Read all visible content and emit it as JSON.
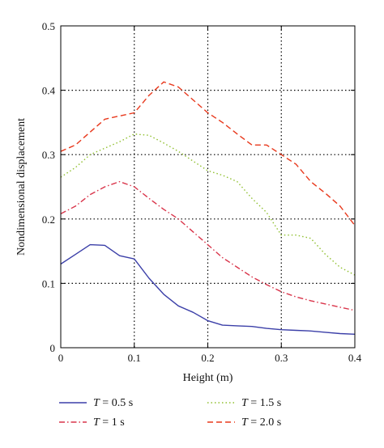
{
  "chart_data": {
    "type": "line",
    "xlabel": "Height (m)",
    "ylabel": "Nondimensional displacement",
    "xlim": [
      0,
      0.4
    ],
    "ylim": [
      0,
      0.5
    ],
    "x_ticks": [
      "0",
      "0.1",
      "0.2",
      "0.3",
      "0.4"
    ],
    "y_ticks": [
      "0",
      "0.1",
      "0.2",
      "0.3",
      "0.4",
      "0.5"
    ],
    "grid": "dotted",
    "legend_placement": "bottom",
    "series": [
      {
        "name": "T = 0.5 s",
        "name_var": "T",
        "name_rest": " = 0.5 s",
        "color": "#3b3fa8",
        "dash": "solid",
        "x": [
          0,
          0.02,
          0.04,
          0.06,
          0.08,
          0.1,
          0.12,
          0.14,
          0.16,
          0.18,
          0.2,
          0.22,
          0.24,
          0.26,
          0.28,
          0.3,
          0.32,
          0.34,
          0.36,
          0.38,
          0.4
        ],
        "y": [
          0.13,
          0.145,
          0.16,
          0.159,
          0.143,
          0.138,
          0.108,
          0.083,
          0.065,
          0.055,
          0.042,
          0.035,
          0.034,
          0.033,
          0.03,
          0.028,
          0.027,
          0.026,
          0.024,
          0.022,
          0.021
        ]
      },
      {
        "name": "T = 1 s",
        "name_var": "T",
        "name_rest": " = 1 s",
        "color": "#d9344a",
        "dash": "dashdot",
        "x": [
          0,
          0.02,
          0.04,
          0.06,
          0.08,
          0.1,
          0.12,
          0.14,
          0.16,
          0.18,
          0.2,
          0.22,
          0.24,
          0.26,
          0.28,
          0.3,
          0.32,
          0.34,
          0.36,
          0.38,
          0.4
        ],
        "y": [
          0.208,
          0.22,
          0.238,
          0.25,
          0.258,
          0.25,
          0.232,
          0.215,
          0.2,
          0.18,
          0.16,
          0.14,
          0.125,
          0.11,
          0.098,
          0.087,
          0.079,
          0.073,
          0.068,
          0.063,
          0.058
        ]
      },
      {
        "name": "T = 1.5 s",
        "name_var": "T",
        "name_rest": " = 1.5 s",
        "color": "#8fbf2e",
        "dash": "dotted",
        "x": [
          0,
          0.02,
          0.04,
          0.06,
          0.08,
          0.1,
          0.12,
          0.14,
          0.16,
          0.18,
          0.2,
          0.22,
          0.24,
          0.26,
          0.28,
          0.3,
          0.32,
          0.34,
          0.36,
          0.38,
          0.4
        ],
        "y": [
          0.265,
          0.28,
          0.3,
          0.31,
          0.32,
          0.332,
          0.33,
          0.318,
          0.305,
          0.29,
          0.275,
          0.268,
          0.258,
          0.232,
          0.21,
          0.175,
          0.175,
          0.17,
          0.145,
          0.125,
          0.113
        ]
      },
      {
        "name": "T = 2.0 s",
        "name_var": "T",
        "name_rest": " = 2.0 s",
        "color": "#e8381c",
        "dash": "dashed",
        "x": [
          0,
          0.02,
          0.04,
          0.06,
          0.08,
          0.1,
          0.12,
          0.14,
          0.16,
          0.18,
          0.2,
          0.22,
          0.24,
          0.26,
          0.28,
          0.3,
          0.32,
          0.34,
          0.36,
          0.38,
          0.4
        ],
        "y": [
          0.305,
          0.315,
          0.335,
          0.355,
          0.36,
          0.365,
          0.392,
          0.413,
          0.405,
          0.385,
          0.365,
          0.35,
          0.332,
          0.315,
          0.315,
          0.3,
          0.285,
          0.258,
          0.24,
          0.22,
          0.19
        ]
      }
    ]
  }
}
